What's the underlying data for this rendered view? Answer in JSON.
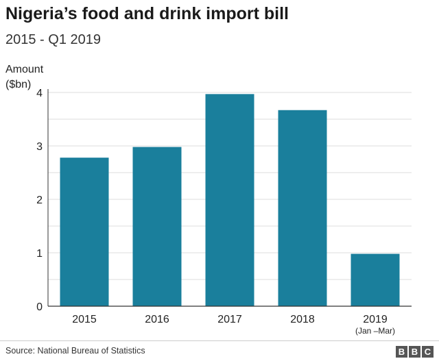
{
  "title": "Nigeria’s food and drink import bill",
  "subtitle": "2015 - Q1 2019",
  "source": "Source: National Bureau of Statistics",
  "logo_letters": [
    "B",
    "B",
    "C"
  ],
  "colors": {
    "bar": "#1a7f9c",
    "grid": "#dddddd",
    "axis": "#333333",
    "text": "#222222"
  },
  "chart_data": {
    "type": "bar",
    "title": "Nigeria’s food and drink import bill",
    "subtitle": "2015 - Q1 2019",
    "ylabel_lines": [
      "Amount",
      "($bn)"
    ],
    "categories": [
      "2015",
      "2016",
      "2017",
      "2018",
      "2019"
    ],
    "category_sublabels": [
      "",
      "",
      "",
      "",
      "(Jan –Mar)"
    ],
    "values": [
      2.78,
      2.98,
      3.97,
      3.67,
      0.98
    ],
    "ylim": [
      0,
      4
    ],
    "yticks": [
      0,
      1,
      2,
      3,
      4
    ],
    "grid": true
  }
}
